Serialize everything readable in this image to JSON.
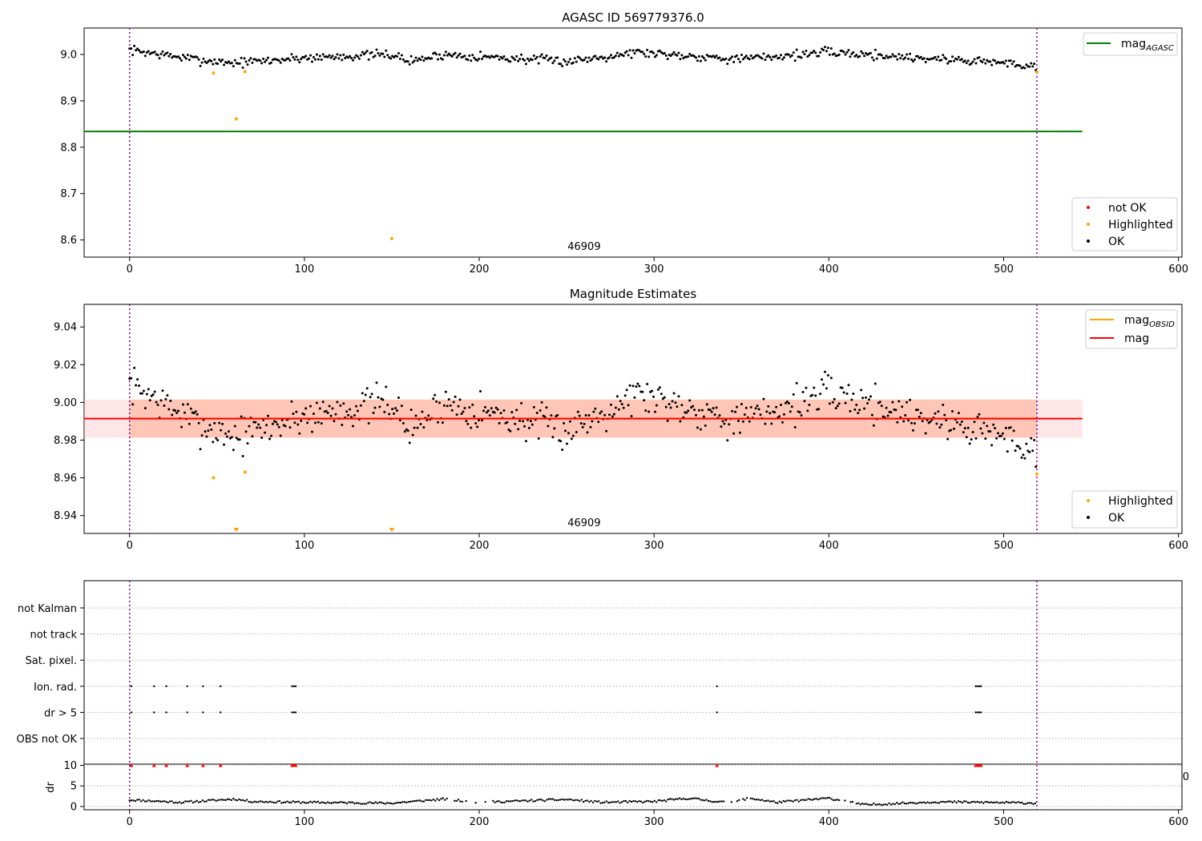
{
  "chart_data": [
    {
      "type": "scatter",
      "title": "AGASC ID 569779376.0",
      "xlim": [
        -26,
        602
      ],
      "ylim": [
        8.563,
        9.057
      ],
      "xticks": [
        0,
        100,
        200,
        300,
        400,
        500,
        600
      ],
      "yticks": [
        8.6,
        8.7,
        8.8,
        8.9,
        9.0
      ],
      "ytick_labels": [
        "8.6",
        "8.7",
        "8.8",
        "8.9",
        "9.0"
      ],
      "vlines": [
        0,
        519
      ],
      "hline": {
        "name": "mag",
        "sub": "AGASC",
        "y": 8.834,
        "x": [
          -26,
          545
        ],
        "color": "#008000"
      },
      "annotation": {
        "text": "46909",
        "x": 260
      },
      "legend_top": [
        {
          "name": "mag",
          "sub": "AGASC",
          "color": "#008000"
        }
      ],
      "legend_bottom": [
        {
          "name": "not OK",
          "color": "#ff0000"
        },
        {
          "name": "Highlighted",
          "color": "#ffa500"
        },
        {
          "name": "OK",
          "color": "#000000"
        }
      ],
      "series": [
        {
          "name": "OK",
          "color": "#000000",
          "trend": [
            [
              0,
              9.01
            ],
            [
              40,
              8.988
            ],
            [
              60,
              8.982
            ],
            [
              80,
              8.987
            ],
            [
              100,
              8.993
            ],
            [
              150,
              9.0
            ],
            [
              160,
              8.985
            ],
            [
              180,
              9.0
            ],
            [
              250,
              8.985
            ],
            [
              290,
              9.005
            ],
            [
              350,
              8.99
            ],
            [
              400,
              9.005
            ],
            [
              450,
              8.993
            ],
            [
              490,
              8.985
            ],
            [
              519,
              8.975
            ]
          ],
          "spread": 0.009
        },
        {
          "name": "Highlighted",
          "color": "#ffa500",
          "points": [
            [
              48,
              8.96
            ],
            [
              61,
              8.861
            ],
            [
              66,
              8.963
            ],
            [
              150,
              8.603
            ],
            [
              519,
              8.962
            ]
          ]
        }
      ]
    },
    {
      "type": "scatter",
      "title": "Magnitude Estimates",
      "xlim": [
        -26,
        602
      ],
      "ylim": [
        8.9305,
        9.052
      ],
      "xticks": [
        0,
        100,
        200,
        300,
        400,
        500,
        600
      ],
      "yticks": [
        8.94,
        8.96,
        8.98,
        9.0,
        9.02,
        9.04
      ],
      "ytick_labels": [
        "8.94",
        "8.96",
        "8.98",
        "9.00",
        "9.02",
        "9.04"
      ],
      "vlines": [
        0,
        519
      ],
      "mag_line": {
        "name": "mag",
        "y": 8.9914,
        "x": [
          -26,
          545
        ],
        "color": "#ff0000",
        "band": [
          8.9813,
          9.0015
        ],
        "band_color": "#ffb6c1"
      },
      "obsid_line": {
        "name": "mag",
        "sub": "OBSID",
        "y": 8.9914,
        "x": [
          0,
          519
        ],
        "color": "#ffa500",
        "band": [
          8.9813,
          9.0015
        ],
        "band_color": "#ffa07a"
      },
      "annotation": {
        "text": "46909",
        "x": 260
      },
      "legend_top": [
        {
          "name": "mag",
          "sub": "OBSID",
          "color": "#ffa500"
        },
        {
          "name": "mag",
          "color": "#ff0000"
        }
      ],
      "legend_bottom": [
        {
          "name": "Highlighted",
          "color": "#ffa500"
        },
        {
          "name": "OK",
          "color": "#000000"
        }
      ],
      "series": [
        {
          "name": "OK",
          "color": "#000000",
          "trend": [
            [
              0,
              9.01
            ],
            [
              40,
              8.988
            ],
            [
              60,
              8.982
            ],
            [
              80,
              8.987
            ],
            [
              100,
              8.993
            ],
            [
              150,
              9.0
            ],
            [
              160,
              8.985
            ],
            [
              180,
              9.0
            ],
            [
              250,
              8.985
            ],
            [
              290,
              9.005
            ],
            [
              350,
              8.99
            ],
            [
              400,
              9.005
            ],
            [
              450,
              8.993
            ],
            [
              490,
              8.985
            ],
            [
              519,
              8.975
            ]
          ],
          "spread": 0.009
        },
        {
          "name": "Highlighted",
          "color": "#ffa500",
          "points": [
            [
              48,
              8.96
            ],
            [
              66,
              8.963
            ],
            [
              519,
              8.962
            ]
          ]
        },
        {
          "name": "Highlighted (off scale)",
          "color": "#ffa500",
          "marker": "triangle-down",
          "points": [
            [
              61,
              8.9305
            ],
            [
              150,
              8.9305
            ]
          ]
        }
      ]
    },
    {
      "type": "scatter",
      "title": "",
      "xlim": [
        -26,
        602
      ],
      "xticks": [
        0,
        100,
        200,
        300,
        400,
        500,
        600
      ],
      "vlines": [
        0,
        519
      ],
      "flag_rows": [
        "not Kalman",
        "not track",
        "Sat. pixel.",
        "Ion. rad.",
        "dr > 5",
        "OBS not OK"
      ],
      "flags": {
        "Ion. rad.": [
          1,
          14,
          21,
          33,
          42,
          52,
          93,
          94,
          95,
          336,
          484,
          485,
          486,
          487
        ],
        "dr > 5": [
          1,
          14,
          21,
          33,
          42,
          52,
          93,
          94,
          95,
          336,
          484,
          485,
          486,
          487
        ]
      },
      "dr_panel": {
        "ylabel": "dr",
        "yticks": [
          0,
          5,
          10
        ],
        "ylim": [
          -0.8,
          10.3
        ],
        "clipped_points": [
          1,
          14,
          21,
          33,
          42,
          52,
          93,
          94,
          95,
          336,
          484,
          485,
          486,
          487
        ],
        "trend": [
          [
            0,
            1.6
          ],
          [
            30,
            1.0
          ],
          [
            60,
            1.8
          ],
          [
            70,
            1.2
          ],
          [
            100,
            1.0
          ],
          [
            150,
            0.8
          ],
          [
            180,
            1.8
          ],
          [
            200,
            1.0
          ],
          [
            250,
            1.7
          ],
          [
            270,
            1.0
          ],
          [
            300,
            1.2
          ],
          [
            320,
            2.0
          ],
          [
            340,
            1.0
          ],
          [
            355,
            2.0
          ],
          [
            370,
            1.0
          ],
          [
            400,
            2.0
          ],
          [
            420,
            0.4
          ],
          [
            460,
            1.1
          ],
          [
            490,
            1.0
          ],
          [
            519,
            0.8
          ]
        ],
        "gaps": [
          [
            180,
            210
          ],
          [
            338,
            355
          ],
          [
            407,
            415
          ]
        ]
      },
      "stray_label": "0"
    }
  ]
}
